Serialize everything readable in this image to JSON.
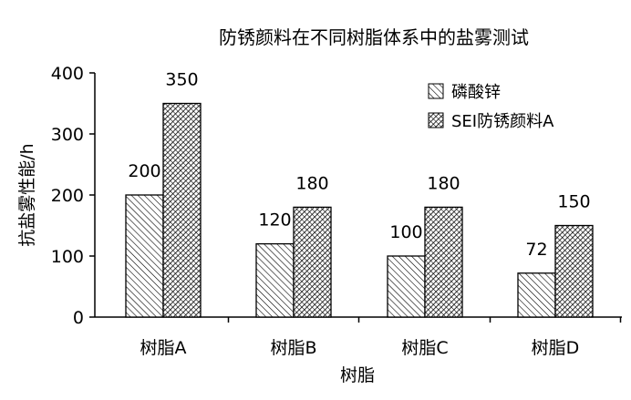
{
  "chart_data": {
    "type": "bar",
    "title": "防锈颜料在不同树脂体系中的盐雾测试",
    "xlabel": "树脂",
    "ylabel": "抗盐雾性能/h",
    "categories": [
      "树脂A",
      "树脂B",
      "树脂C",
      "树脂D"
    ],
    "series": [
      {
        "name": "磷酸锌",
        "values": [
          200,
          120,
          100,
          72
        ],
        "data_labels": [
          "200",
          "120",
          "100",
          "72"
        ],
        "pattern": "diagonal-sparse"
      },
      {
        "name": "SEI防锈颜料A",
        "values": [
          350,
          180,
          180,
          150
        ],
        "data_labels": [
          "350",
          "180",
          "180",
          "150"
        ],
        "pattern": "crosshatch-dense"
      }
    ],
    "ylim": [
      0,
      400
    ],
    "yticks": [
      "0",
      "100",
      "200",
      "300",
      "400"
    ],
    "grid": false,
    "legend": "top-right",
    "colors": {
      "bar_stroke": "#000000",
      "hatch": "#000000",
      "background": "#ffffff"
    }
  }
}
